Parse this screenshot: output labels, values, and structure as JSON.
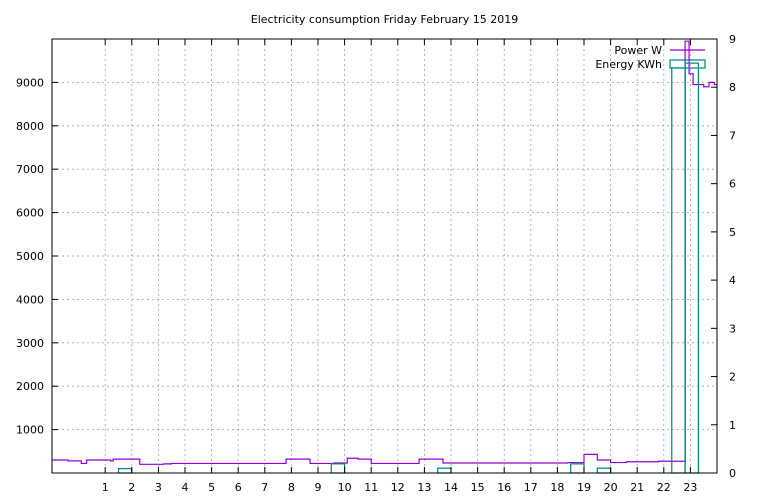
{
  "chart_data": {
    "type": "line",
    "title": "Electricity consumption Friday February 15 2019",
    "xlabel": "",
    "ylabel": "",
    "y2label": "",
    "x_ticks": [
      1,
      2,
      3,
      4,
      5,
      6,
      7,
      8,
      9,
      10,
      11,
      12,
      13,
      14,
      15,
      16,
      17,
      18,
      19,
      20,
      21,
      22,
      23
    ],
    "xlim": [
      -1,
      24
    ],
    "ylim": [
      0,
      10000
    ],
    "y_ticks": [
      1000,
      2000,
      3000,
      4000,
      5000,
      6000,
      7000,
      8000,
      9000
    ],
    "y2lim": [
      0,
      9
    ],
    "y2_ticks": [
      0,
      1,
      2,
      3,
      4,
      5,
      6,
      7,
      8,
      9
    ],
    "grid": true,
    "legend_position": "top-right",
    "series": [
      {
        "name": "Power W",
        "axis": "left",
        "color": "#9400d3",
        "style": "step",
        "points": [
          [
            -1.0,
            300
          ],
          [
            -0.4,
            280
          ],
          [
            0.1,
            220
          ],
          [
            0.3,
            300
          ],
          [
            1.2,
            280
          ],
          [
            1.3,
            320
          ],
          [
            2.3,
            200
          ],
          [
            3.2,
            210
          ],
          [
            3.5,
            220
          ],
          [
            4.5,
            220
          ],
          [
            6.4,
            220
          ],
          [
            7.8,
            320
          ],
          [
            8.7,
            220
          ],
          [
            9.6,
            230
          ],
          [
            10.1,
            340
          ],
          [
            10.5,
            320
          ],
          [
            11.0,
            220
          ],
          [
            12.2,
            220
          ],
          [
            12.8,
            320
          ],
          [
            13.7,
            230
          ],
          [
            18.4,
            240
          ],
          [
            19.0,
            430
          ],
          [
            19.5,
            300
          ],
          [
            20.0,
            240
          ],
          [
            20.6,
            260
          ],
          [
            21.8,
            270
          ],
          [
            22.8,
            9950
          ],
          [
            22.95,
            9200
          ],
          [
            23.1,
            8950
          ],
          [
            23.5,
            8900
          ],
          [
            23.7,
            9000
          ],
          [
            23.9,
            8950
          ]
        ]
      },
      {
        "name": "Energy KWh",
        "axis": "right",
        "color": "#008080",
        "style": "bar",
        "bars": [
          [
            1.5,
            2.0,
            0.09
          ],
          [
            9.5,
            10.0,
            0.19
          ],
          [
            13.5,
            14.0,
            0.1
          ],
          [
            18.5,
            19.0,
            0.19
          ],
          [
            19.5,
            20.0,
            0.1
          ],
          [
            22.3,
            22.8,
            8.4
          ],
          [
            22.8,
            23.3,
            8.5
          ]
        ]
      }
    ]
  }
}
